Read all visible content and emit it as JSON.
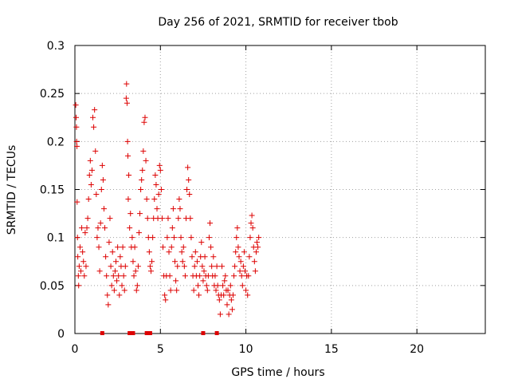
{
  "chart_data": {
    "type": "scatter",
    "title": "Day 256 of 2021, SRMTID for receiver tbob",
    "xlabel": "GPS time / hours",
    "ylabel": "SRMTID / TECUs",
    "xlim": [
      0,
      24
    ],
    "ylim": [
      0,
      0.3
    ],
    "x_ticks": [
      0,
      5,
      10,
      15,
      20
    ],
    "x_tick_labels": [
      "0",
      "5",
      "10",
      "15",
      "20"
    ],
    "y_ticks": [
      0,
      0.05,
      0.1,
      0.15,
      0.2,
      0.25,
      0.3
    ],
    "y_tick_labels": [
      "0",
      "0.05",
      "0.1",
      "0.15",
      "0.2",
      "0.25",
      "0.3"
    ],
    "grid": true,
    "marker": "plus",
    "color": "#dd0000",
    "series": [
      {
        "name": "SRMTID",
        "points": [
          [
            0.05,
            0.238
          ],
          [
            0.07,
            0.225
          ],
          [
            0.09,
            0.215
          ],
          [
            0.1,
            0.2
          ],
          [
            0.12,
            0.195
          ],
          [
            0.13,
            0.137
          ],
          [
            0.15,
            0.1
          ],
          [
            0.17,
            0.08
          ],
          [
            0.2,
            0.06
          ],
          [
            0.22,
            0.05
          ],
          [
            0.25,
            0.07
          ],
          [
            0.3,
            0.09
          ],
          [
            0.35,
            0.065
          ],
          [
            0.4,
            0.11
          ],
          [
            0.45,
            0.085
          ],
          [
            0.5,
            0.075
          ],
          [
            0.55,
            0.06
          ],
          [
            0.6,
            0.105
          ],
          [
            0.65,
            0.07
          ],
          [
            0.7,
            0.11
          ],
          [
            0.75,
            0.12
          ],
          [
            0.8,
            0.14
          ],
          [
            0.85,
            0.165
          ],
          [
            0.9,
            0.18
          ],
          [
            0.95,
            0.155
          ],
          [
            1.0,
            0.17
          ],
          [
            1.05,
            0.225
          ],
          [
            1.1,
            0.215
          ],
          [
            1.15,
            0.233
          ],
          [
            1.2,
            0.19
          ],
          [
            1.25,
            0.145
          ],
          [
            1.3,
            0.1
          ],
          [
            1.35,
            0.11
          ],
          [
            1.4,
            0.09
          ],
          [
            1.45,
            0.065
          ],
          [
            1.5,
            0.115
          ],
          [
            1.55,
            0.15
          ],
          [
            1.6,
            0.175
          ],
          [
            1.65,
            0.16
          ],
          [
            1.7,
            0.13
          ],
          [
            1.75,
            0.11
          ],
          [
            1.8,
            0.08
          ],
          [
            1.85,
            0.06
          ],
          [
            1.9,
            0.04
          ],
          [
            1.95,
            0.03
          ],
          [
            2.0,
            0.095
          ],
          [
            2.05,
            0.12
          ],
          [
            2.1,
            0.07
          ],
          [
            2.15,
            0.05
          ],
          [
            2.2,
            0.085
          ],
          [
            2.25,
            0.06
          ],
          [
            2.3,
            0.045
          ],
          [
            2.35,
            0.065
          ],
          [
            2.4,
            0.075
          ],
          [
            2.45,
            0.055
          ],
          [
            2.5,
            0.09
          ],
          [
            2.55,
            0.06
          ],
          [
            2.6,
            0.04
          ],
          [
            2.65,
            0.08
          ],
          [
            2.7,
            0.07
          ],
          [
            2.75,
            0.05
          ],
          [
            2.8,
            0.09
          ],
          [
            2.85,
            0.06
          ],
          [
            2.9,
            0.045
          ],
          [
            2.95,
            0.07
          ],
          [
            3.0,
            0.245
          ],
          [
            3.02,
            0.26
          ],
          [
            3.05,
            0.24
          ],
          [
            3.08,
            0.2
          ],
          [
            3.1,
            0.185
          ],
          [
            3.12,
            0.14
          ],
          [
            3.15,
            0.165
          ],
          [
            3.2,
            0.11
          ],
          [
            3.25,
            0.125
          ],
          [
            3.3,
            0.09
          ],
          [
            3.35,
            0.1
          ],
          [
            3.4,
            0.075
          ],
          [
            3.45,
            0.06
          ],
          [
            3.5,
            0.09
          ],
          [
            3.55,
            0.065
          ],
          [
            3.6,
            0.045
          ],
          [
            3.65,
            0.05
          ],
          [
            3.7,
            0.07
          ],
          [
            3.75,
            0.105
          ],
          [
            3.8,
            0.125
          ],
          [
            3.85,
            0.15
          ],
          [
            3.9,
            0.16
          ],
          [
            3.95,
            0.17
          ],
          [
            4.0,
            0.19
          ],
          [
            4.05,
            0.22
          ],
          [
            4.1,
            0.225
          ],
          [
            4.15,
            0.18
          ],
          [
            4.2,
            0.14
          ],
          [
            4.25,
            0.12
          ],
          [
            4.3,
            0.1
          ],
          [
            4.35,
            0.085
          ],
          [
            4.4,
            0.07
          ],
          [
            4.45,
            0.065
          ],
          [
            4.5,
            0.075
          ],
          [
            4.55,
            0.1
          ],
          [
            4.6,
            0.12
          ],
          [
            4.65,
            0.14
          ],
          [
            4.7,
            0.165
          ],
          [
            4.75,
            0.155
          ],
          [
            4.8,
            0.13
          ],
          [
            4.85,
            0.12
          ],
          [
            4.9,
            0.145
          ],
          [
            4.95,
            0.175
          ],
          [
            5.0,
            0.17
          ],
          [
            5.05,
            0.15
          ],
          [
            5.1,
            0.12
          ],
          [
            5.15,
            0.09
          ],
          [
            5.2,
            0.06
          ],
          [
            5.25,
            0.04
          ],
          [
            5.3,
            0.035
          ],
          [
            5.35,
            0.06
          ],
          [
            5.4,
            0.1
          ],
          [
            5.45,
            0.12
          ],
          [
            5.5,
            0.085
          ],
          [
            5.55,
            0.06
          ],
          [
            5.6,
            0.045
          ],
          [
            5.65,
            0.09
          ],
          [
            5.7,
            0.11
          ],
          [
            5.75,
            0.13
          ],
          [
            5.8,
            0.1
          ],
          [
            5.85,
            0.075
          ],
          [
            5.9,
            0.055
          ],
          [
            5.95,
            0.045
          ],
          [
            6.0,
            0.07
          ],
          [
            6.05,
            0.12
          ],
          [
            6.1,
            0.14
          ],
          [
            6.15,
            0.13
          ],
          [
            6.2,
            0.1
          ],
          [
            6.25,
            0.085
          ],
          [
            6.3,
            0.075
          ],
          [
            6.35,
            0.09
          ],
          [
            6.4,
            0.07
          ],
          [
            6.45,
            0.06
          ],
          [
            6.5,
            0.12
          ],
          [
            6.55,
            0.15
          ],
          [
            6.6,
            0.173
          ],
          [
            6.65,
            0.16
          ],
          [
            6.7,
            0.145
          ],
          [
            6.75,
            0.12
          ],
          [
            6.8,
            0.1
          ],
          [
            6.85,
            0.08
          ],
          [
            6.9,
            0.06
          ],
          [
            6.95,
            0.045
          ],
          [
            7.0,
            0.07
          ],
          [
            7.05,
            0.085
          ],
          [
            7.1,
            0.06
          ],
          [
            7.15,
            0.075
          ],
          [
            7.2,
            0.05
          ],
          [
            7.25,
            0.04
          ],
          [
            7.3,
            0.06
          ],
          [
            7.35,
            0.08
          ],
          [
            7.4,
            0.095
          ],
          [
            7.45,
            0.07
          ],
          [
            7.5,
            0.055
          ],
          [
            7.55,
            0.065
          ],
          [
            7.6,
            0.08
          ],
          [
            7.65,
            0.06
          ],
          [
            7.7,
            0.05
          ],
          [
            7.75,
            0.045
          ],
          [
            7.8,
            0.06
          ],
          [
            7.85,
            0.1
          ],
          [
            7.9,
            0.115
          ],
          [
            7.95,
            0.09
          ],
          [
            8.0,
            0.07
          ],
          [
            8.05,
            0.06
          ],
          [
            8.1,
            0.08
          ],
          [
            8.15,
            0.05
          ],
          [
            8.2,
            0.06
          ],
          [
            8.25,
            0.045
          ],
          [
            8.3,
            0.07
          ],
          [
            8.35,
            0.05
          ],
          [
            8.4,
            0.04
          ],
          [
            8.45,
            0.035
          ],
          [
            8.5,
            0.02
          ],
          [
            8.55,
            0.04
          ],
          [
            8.6,
            0.07
          ],
          [
            8.65,
            0.05
          ],
          [
            8.7,
            0.04
          ],
          [
            8.75,
            0.055
          ],
          [
            8.8,
            0.06
          ],
          [
            8.85,
            0.045
          ],
          [
            8.9,
            0.03
          ],
          [
            8.95,
            0.045
          ],
          [
            9.0,
            0.02
          ],
          [
            9.05,
            0.04
          ],
          [
            9.1,
            0.05
          ],
          [
            9.15,
            0.035
          ],
          [
            9.2,
            0.025
          ],
          [
            9.25,
            0.04
          ],
          [
            9.3,
            0.06
          ],
          [
            9.35,
            0.07
          ],
          [
            9.4,
            0.085
          ],
          [
            9.45,
            0.1
          ],
          [
            9.5,
            0.11
          ],
          [
            9.55,
            0.09
          ],
          [
            9.6,
            0.08
          ],
          [
            9.65,
            0.065
          ],
          [
            9.7,
            0.075
          ],
          [
            9.75,
            0.06
          ],
          [
            9.8,
            0.05
          ],
          [
            9.85,
            0.07
          ],
          [
            9.9,
            0.085
          ],
          [
            9.95,
            0.065
          ],
          [
            10.0,
            0.045
          ],
          [
            10.05,
            0.06
          ],
          [
            10.1,
            0.04
          ],
          [
            10.15,
            0.06
          ],
          [
            10.2,
            0.08
          ],
          [
            10.25,
            0.1
          ],
          [
            10.3,
            0.115
          ],
          [
            10.35,
            0.123
          ],
          [
            10.4,
            0.11
          ],
          [
            10.45,
            0.09
          ],
          [
            10.5,
            0.075
          ],
          [
            10.55,
            0.065
          ],
          [
            10.6,
            0.085
          ],
          [
            10.65,
            0.095
          ],
          [
            10.7,
            0.09
          ],
          [
            10.75,
            0.1
          ]
        ]
      }
    ],
    "baseline_marks_x": [
      1.6,
      3.2,
      3.4,
      4.2,
      4.4,
      7.5,
      8.3
    ]
  }
}
